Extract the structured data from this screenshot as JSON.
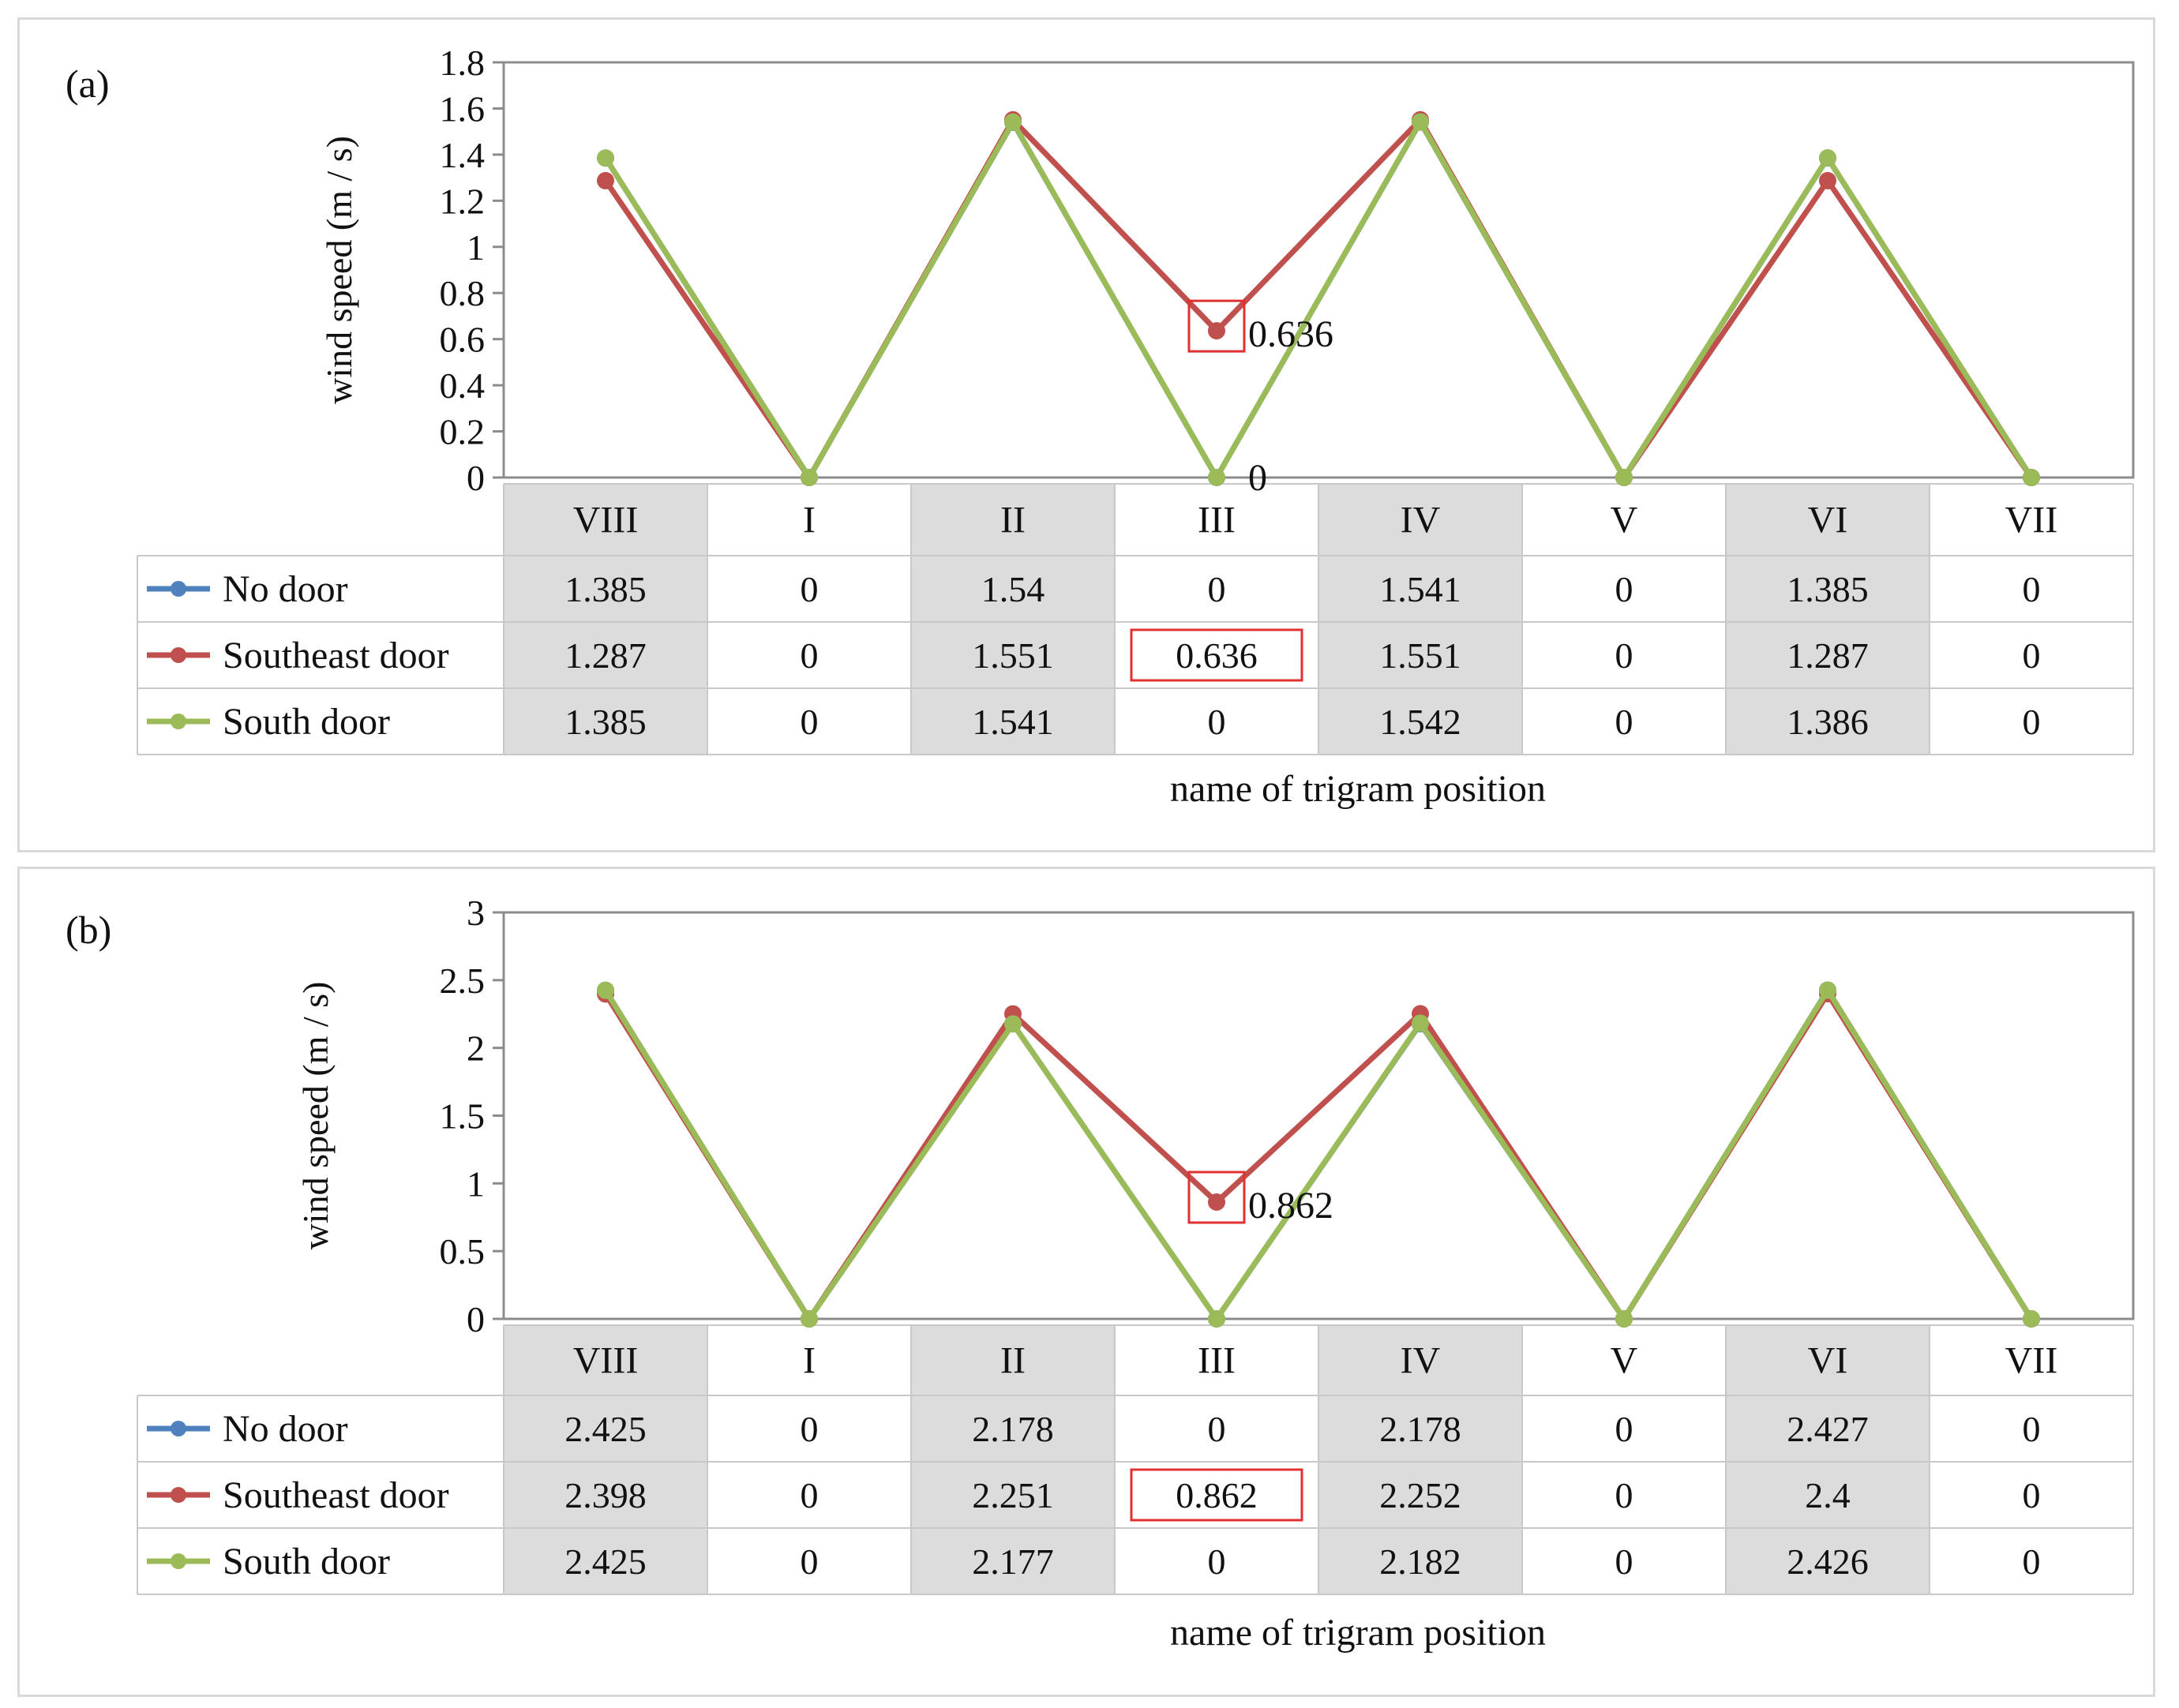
{
  "chart_data": [
    {
      "type": "line",
      "panel_label": "(a)",
      "ylabel": "wind speed (m / s)",
      "xlabel": "name of trigram position",
      "ylim": [
        0,
        1.8
      ],
      "y_ticks": [
        "0",
        "0.2",
        "0.4",
        "0.6",
        "0.8",
        "1",
        "1.2",
        "1.4",
        "1.6",
        "1.8"
      ],
      "categories": [
        "VIII",
        "I",
        "II",
        "III",
        "IV",
        "V",
        "VI",
        "VII"
      ],
      "series": [
        {
          "name": "No door",
          "color": "#4f81bd",
          "values": [
            1.385,
            0,
            1.54,
            0,
            1.541,
            0,
            1.385,
            0
          ],
          "labels": [
            "1.385",
            "0",
            "1.54",
            "0",
            "1.541",
            "0",
            "1.385",
            "0"
          ]
        },
        {
          "name": "Southeast door",
          "color": "#c0504d",
          "values": [
            1.287,
            0,
            1.551,
            0.636,
            1.551,
            0,
            1.287,
            0
          ],
          "labels": [
            "1.287",
            "0",
            "1.551",
            "0.636",
            "1.551",
            "0",
            "1.287",
            "0"
          ]
        },
        {
          "name": "South door",
          "color": "#9bbb59",
          "values": [
            1.385,
            0,
            1.541,
            0,
            1.542,
            0,
            1.386,
            0
          ],
          "labels": [
            "1.385",
            "0",
            "1.541",
            "0",
            "1.542",
            "0",
            "1.386",
            "0"
          ]
        }
      ],
      "annotations": [
        {
          "text": "0.636",
          "series": 1,
          "category": "III"
        },
        {
          "text": "0",
          "series": 2,
          "category": "III"
        }
      ],
      "highlight": {
        "series": 1,
        "category": "III"
      }
    },
    {
      "type": "line",
      "panel_label": "(b)",
      "ylabel": "wind speed (m / s)",
      "xlabel": "name of trigram position",
      "ylim": [
        0,
        3
      ],
      "y_ticks": [
        "0",
        "0.5",
        "1",
        "1.5",
        "2",
        "2.5",
        "3"
      ],
      "categories": [
        "VIII",
        "I",
        "II",
        "III",
        "IV",
        "V",
        "VI",
        "VII"
      ],
      "series": [
        {
          "name": "No door",
          "color": "#4f81bd",
          "values": [
            2.425,
            0,
            2.178,
            0,
            2.178,
            0,
            2.427,
            0
          ],
          "labels": [
            "2.425",
            "0",
            "2.178",
            "0",
            "2.178",
            "0",
            "2.427",
            "0"
          ]
        },
        {
          "name": "Southeast door",
          "color": "#c0504d",
          "values": [
            2.398,
            0,
            2.251,
            0.862,
            2.252,
            0,
            2.4,
            0
          ],
          "labels": [
            "2.398",
            "0",
            "2.251",
            "0.862",
            "2.252",
            "0",
            "2.4",
            "0"
          ]
        },
        {
          "name": "South door",
          "color": "#9bbb59",
          "values": [
            2.425,
            0,
            2.177,
            0,
            2.182,
            0,
            2.426,
            0
          ],
          "labels": [
            "2.425",
            "0",
            "2.177",
            "0",
            "2.182",
            "0",
            "2.426",
            "0"
          ]
        }
      ],
      "annotations": [
        {
          "text": "0.862",
          "series": 1,
          "category": "III"
        }
      ],
      "highlight": {
        "series": 1,
        "category": "III"
      }
    }
  ]
}
